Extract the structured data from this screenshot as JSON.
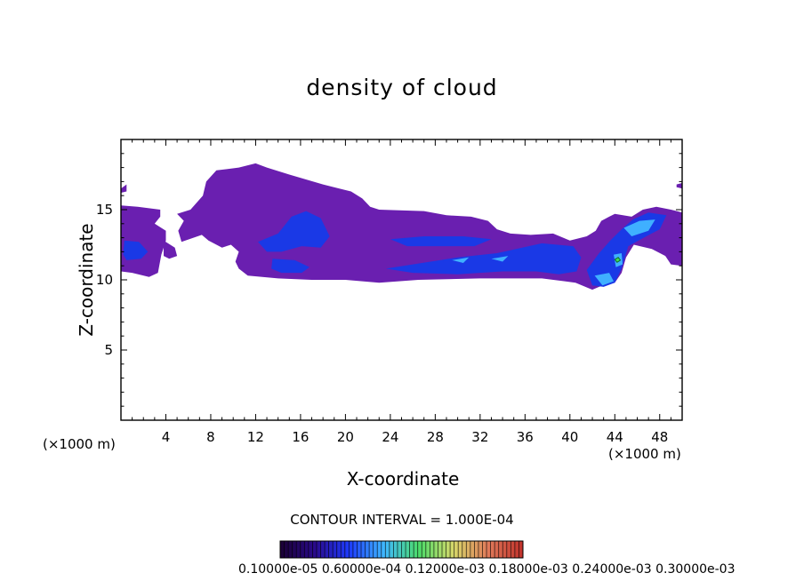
{
  "chart_data": {
    "type": "heatmap",
    "title": "density of cloud",
    "xlabel": "X-coordinate",
    "ylabel": "Z-coordinate",
    "x_unit_label": "(×1000 m)",
    "xlim": [
      0,
      50
    ],
    "ylim": [
      0,
      20
    ],
    "x_ticks": [
      4,
      8,
      12,
      16,
      20,
      24,
      28,
      32,
      36,
      40,
      44,
      48
    ],
    "y_ticks": [
      5,
      10,
      15
    ],
    "contour_interval_text": "CONTOUR INTERVAL = 1.000E-04",
    "colorbar_labels_text": "0.10000e-05 0.60000e-04 0.12000e-03 0.18000e-03 0.24000e-03 0.30000e-03",
    "colorbar_min": 1e-06,
    "colorbar_max": 0.0003,
    "colormap": [
      "#1a0033",
      "#2a0a8c",
      "#1e3cff",
      "#3fb8ff",
      "#4ddc6a",
      "#d8d86a",
      "#e07a5a",
      "#c0302a"
    ],
    "cloud_layer_color": "#6a1fb0",
    "core_color": "#1a39e6",
    "high_color": "#3fb0ff",
    "peak_color": "#3fdc55",
    "regions": [
      {
        "level": 1,
        "points": [
          [
            0,
            16.5
          ],
          [
            0.5,
            16.8
          ],
          [
            0.5,
            16.3
          ],
          [
            0,
            16.2
          ]
        ]
      },
      {
        "level": 1,
        "points": [
          [
            0,
            15.3
          ],
          [
            1.5,
            15.2
          ],
          [
            3.5,
            15
          ],
          [
            3.5,
            14.5
          ],
          [
            3,
            14
          ],
          [
            4,
            13.5
          ],
          [
            4,
            12.8
          ],
          [
            3.8,
            12.3
          ],
          [
            3.6,
            11.8
          ],
          [
            3.3,
            10.5
          ],
          [
            2.5,
            10.2
          ],
          [
            1,
            10.5
          ],
          [
            0,
            10.6
          ]
        ]
      },
      {
        "level": 1,
        "points": [
          [
            3.8,
            12.8
          ],
          [
            4.8,
            12.3
          ],
          [
            5,
            11.7
          ],
          [
            4.3,
            11.5
          ],
          [
            3.8,
            11.7
          ]
        ]
      },
      {
        "level": 1,
        "points": [
          [
            5,
            14.7
          ],
          [
            6.2,
            15
          ],
          [
            7.3,
            16
          ],
          [
            7.6,
            17
          ],
          [
            8.5,
            17.8
          ],
          [
            10.5,
            18
          ],
          [
            12,
            18.3
          ],
          [
            13,
            18
          ],
          [
            15,
            17.5
          ],
          [
            18,
            16.8
          ],
          [
            20.5,
            16.3
          ],
          [
            21.5,
            15.8
          ],
          [
            22.2,
            15.2
          ],
          [
            23,
            15
          ],
          [
            27,
            14.9
          ],
          [
            29,
            14.6
          ],
          [
            31.2,
            14.5
          ],
          [
            32.7,
            14.2
          ],
          [
            33.5,
            13.6
          ],
          [
            34.7,
            13.3
          ],
          [
            36.5,
            13.2
          ],
          [
            38.5,
            13.3
          ],
          [
            40,
            12.8
          ],
          [
            41.5,
            13.1
          ],
          [
            42.3,
            13.5
          ],
          [
            42.8,
            14.2
          ],
          [
            43.5,
            14.5
          ],
          [
            44,
            14.7
          ],
          [
            45.5,
            14.5
          ],
          [
            46.5,
            15
          ],
          [
            47.7,
            15.2
          ],
          [
            49,
            15
          ],
          [
            50,
            14.8
          ],
          [
            50,
            11
          ],
          [
            49,
            11.1
          ],
          [
            48.5,
            11.7
          ],
          [
            47.3,
            12.2
          ],
          [
            45.7,
            12.5
          ],
          [
            45,
            11.6
          ],
          [
            44.6,
            10.5
          ],
          [
            44,
            9.8
          ],
          [
            43.3,
            9.7
          ],
          [
            42.6,
            9.5
          ],
          [
            42,
            9.3
          ],
          [
            40.5,
            9.8
          ],
          [
            37.5,
            10.1
          ],
          [
            32,
            10.1
          ],
          [
            26.5,
            10
          ],
          [
            23,
            9.8
          ],
          [
            20,
            10
          ],
          [
            17,
            10
          ],
          [
            14,
            10.1
          ],
          [
            11.3,
            10.3
          ],
          [
            10.5,
            10.8
          ],
          [
            10.2,
            11.3
          ],
          [
            10.5,
            12
          ],
          [
            9.8,
            12.5
          ],
          [
            9,
            12.3
          ],
          [
            7.8,
            12.8
          ],
          [
            7.2,
            13.2
          ],
          [
            5.4,
            12.7
          ],
          [
            5.1,
            13.5
          ],
          [
            5.6,
            14.2
          ]
        ]
      },
      {
        "level": 1,
        "points": [
          [
            49.5,
            16.8
          ],
          [
            50,
            16.9
          ],
          [
            50,
            16.5
          ],
          [
            49.5,
            16.6
          ]
        ]
      },
      {
        "level": 2,
        "points": [
          [
            0.3,
            12.8
          ],
          [
            1.6,
            12.7
          ],
          [
            2.4,
            12
          ],
          [
            1.8,
            11.5
          ],
          [
            0.5,
            11.4
          ],
          [
            0.2,
            11.8
          ]
        ]
      },
      {
        "level": 2,
        "points": [
          [
            12.2,
            12.7
          ],
          [
            14,
            13.3
          ],
          [
            15.2,
            14.5
          ],
          [
            16.5,
            14.9
          ],
          [
            17.8,
            14.4
          ],
          [
            18.6,
            13.1
          ],
          [
            17.8,
            12.3
          ],
          [
            16.1,
            12.4
          ],
          [
            14.3,
            12
          ],
          [
            13,
            12
          ]
        ]
      },
      {
        "level": 2,
        "points": [
          [
            13.5,
            11.5
          ],
          [
            15.5,
            11.4
          ],
          [
            16.8,
            10.9
          ],
          [
            16.1,
            10.5
          ],
          [
            14.3,
            10.5
          ],
          [
            13.4,
            10.8
          ]
        ]
      },
      {
        "level": 2,
        "points": [
          [
            24,
            12.9
          ],
          [
            27,
            13.1
          ],
          [
            30.5,
            13.1
          ],
          [
            33,
            12.9
          ],
          [
            31.5,
            12.4
          ],
          [
            28.5,
            12.4
          ],
          [
            25.5,
            12.4
          ]
        ]
      },
      {
        "level": 2,
        "points": [
          [
            23.6,
            10.8
          ],
          [
            26,
            11.1
          ],
          [
            30,
            11.6
          ],
          [
            33.5,
            11.9
          ],
          [
            37.5,
            12.6
          ],
          [
            40.3,
            12.4
          ],
          [
            41,
            11.6
          ],
          [
            40.6,
            10.6
          ],
          [
            39,
            10.4
          ],
          [
            37,
            10.6
          ],
          [
            34,
            10.6
          ],
          [
            30,
            10.4
          ],
          [
            26,
            10.5
          ]
        ]
      },
      {
        "level": 2,
        "points": [
          [
            41.5,
            10.7
          ],
          [
            42.6,
            11.9
          ],
          [
            43.6,
            12.8
          ],
          [
            44.6,
            13.6
          ],
          [
            45.6,
            14.3
          ],
          [
            47,
            14.8
          ],
          [
            48.6,
            14.6
          ],
          [
            48,
            13.6
          ],
          [
            46.8,
            13.1
          ],
          [
            45.2,
            12.4
          ],
          [
            44.6,
            10.8
          ],
          [
            44,
            9.8
          ],
          [
            43,
            9.5
          ],
          [
            42,
            9.6
          ]
        ]
      },
      {
        "level": 3,
        "points": [
          [
            44.8,
            13.7
          ],
          [
            46.2,
            14.2
          ],
          [
            47.6,
            14.3
          ],
          [
            47,
            13.5
          ],
          [
            45.5,
            13.1
          ]
        ]
      },
      {
        "level": 3,
        "points": [
          [
            43.9,
            11.8
          ],
          [
            44.6,
            11.9
          ],
          [
            44.7,
            11.1
          ],
          [
            44.1,
            10.9
          ]
        ]
      },
      {
        "level": 3,
        "points": [
          [
            42.2,
            10.3
          ],
          [
            43.5,
            10.5
          ],
          [
            43.9,
            9.9
          ],
          [
            42.9,
            9.6
          ]
        ]
      },
      {
        "level": 3,
        "points": [
          [
            29.5,
            11.4
          ],
          [
            31,
            11.6
          ],
          [
            30.5,
            11.2
          ]
        ]
      },
      {
        "level": 3,
        "points": [
          [
            33,
            11.5
          ],
          [
            34.5,
            11.7
          ],
          [
            34,
            11.3
          ]
        ]
      },
      {
        "level": 4,
        "points": [
          [
            44,
            11.45
          ],
          [
            44.3,
            11.6
          ],
          [
            44.5,
            11.4
          ],
          [
            44.2,
            11.25
          ]
        ]
      }
    ]
  }
}
